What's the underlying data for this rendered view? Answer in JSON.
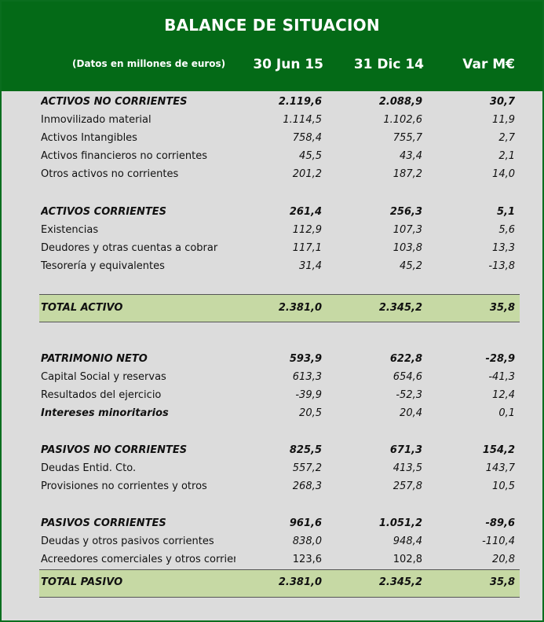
{
  "header": {
    "title": "BALANCE DE SITUACION",
    "note": "(Datos en millones de euros)",
    "col1": "30 Jun 15",
    "col2": "31 Dic 14",
    "col3": "Var M€"
  },
  "rows": [
    {
      "label": "ACTIVOS NO CORRIENTES",
      "c1": "2.119,6",
      "c2": "2.088,9",
      "c3": "30,7"
    },
    {
      "label": "Inmovilizado material",
      "c1": "1.114,5",
      "c2": "1.102,6",
      "c3": "11,9"
    },
    {
      "label": "Activos Intangibles",
      "c1": "758,4",
      "c2": "755,7",
      "c3": "2,7"
    },
    {
      "label": "Activos financieros no corrientes",
      "c1": "45,5",
      "c2": "43,4",
      "c3": "2,1"
    },
    {
      "label": "Otros activos no corrientes",
      "c1": "201,2",
      "c2": "187,2",
      "c3": "14,0"
    },
    {
      "label": "ACTIVOS CORRIENTES",
      "c1": "261,4",
      "c2": "256,3",
      "c3": "5,1"
    },
    {
      "label": "Existencias",
      "c1": "112,9",
      "c2": "107,3",
      "c3": "5,6"
    },
    {
      "label": "Deudores y otras cuentas a cobrar",
      "c1": "117,1",
      "c2": "103,8",
      "c3": "13,3"
    },
    {
      "label": "Tesorería y equivalentes",
      "c1": "31,4",
      "c2": "45,2",
      "c3": "-13,8"
    },
    {
      "label": "TOTAL ACTIVO",
      "c1": "2.381,0",
      "c2": "2.345,2",
      "c3": "35,8"
    },
    {
      "label": "PATRIMONIO NETO",
      "c1": "593,9",
      "c2": "622,8",
      "c3": "-28,9"
    },
    {
      "label": "Capital Social y reservas",
      "c1": "613,3",
      "c2": "654,6",
      "c3": "-41,3"
    },
    {
      "label": "Resultados del ejercicio",
      "c1": "-39,9",
      "c2": "-52,3",
      "c3": "12,4"
    },
    {
      "label": "Intereses minoritarios",
      "c1": "20,5",
      "c2": "20,4",
      "c3": "0,1"
    },
    {
      "label": "PASIVOS NO CORRIENTES",
      "c1": "825,5",
      "c2": "671,3",
      "c3": "154,2"
    },
    {
      "label": "Deudas Entid. Cto.",
      "c1": "557,2",
      "c2": "413,5",
      "c3": "143,7"
    },
    {
      "label": "Provisiones no corrientes y otros",
      "c1": "268,3",
      "c2": "257,8",
      "c3": "10,5"
    },
    {
      "label": "PASIVOS CORRIENTES",
      "c1": "961,6",
      "c2": "1.051,2",
      "c3": "-89,6"
    },
    {
      "label": "Deudas y otros pasivos corrientes",
      "c1": "838,0",
      "c2": "948,4",
      "c3": "-110,4"
    },
    {
      "label": "Acreedores comerciales y otros corrient",
      "c1": "123,6",
      "c2": "102,8",
      "c3": "20,8"
    },
    {
      "label": "TOTAL PASIVO",
      "c1": "2.381,0",
      "c2": "2.345,2",
      "c3": "35,8"
    }
  ]
}
